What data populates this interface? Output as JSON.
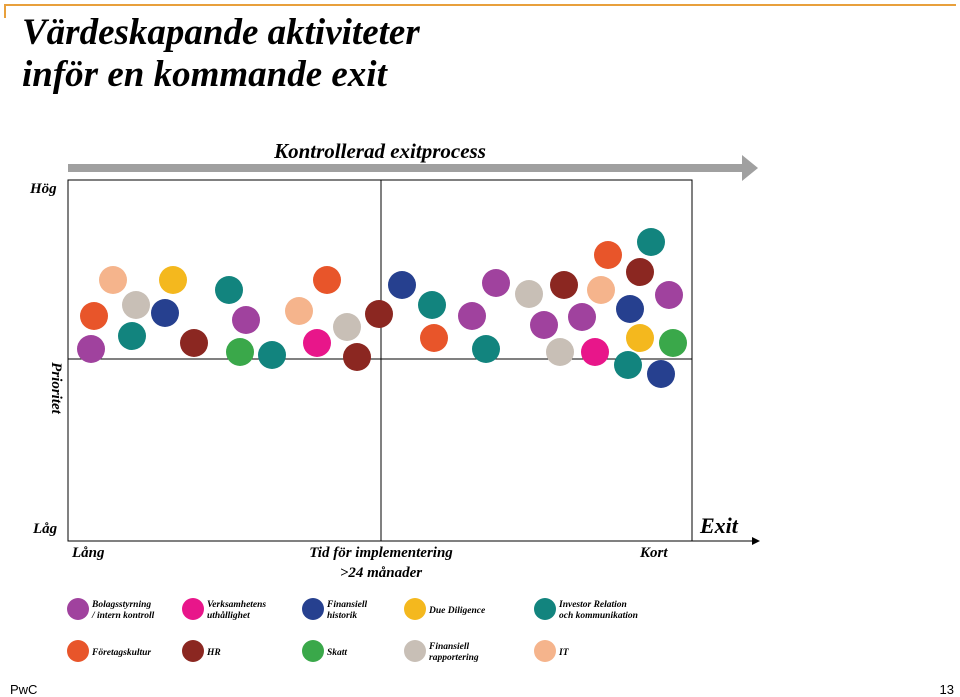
{
  "title_line1": "Värdeskapande aktiviteter",
  "title_line2": "inför en kommande exit",
  "footer": {
    "brand": "PwC",
    "page": "13"
  },
  "diagram": {
    "header": "Kontrollerad exitprocess",
    "y_high": "Hög",
    "y_low": "Låg",
    "y_label": "Prioritet",
    "x_left": "Lång",
    "x_center_line1": "Tid för implementering",
    "x_center_line2": ">24 månader",
    "x_right": "Kort",
    "exit_label": "Exit"
  },
  "colors": {
    "purple": "#a0429e",
    "magenta": "#e8168a",
    "navy": "#26408f",
    "yellow": "#f4b81e",
    "teal": "#12847e",
    "orange": "#e8552a",
    "darkred": "#8b2721",
    "green": "#3aa84a",
    "gray": "#c8bfb6",
    "peach": "#f5b48c",
    "arrow": "#a0a0a0"
  },
  "legend": [
    {
      "key": "purple",
      "line1": "Bolagsstyrning",
      "line2": "/ intern kontroll"
    },
    {
      "key": "magenta",
      "line1": "Verksamhetens",
      "line2": "uthållighet"
    },
    {
      "key": "navy",
      "line1": "Finansiell",
      "line2": "historik"
    },
    {
      "key": "yellow",
      "line1": "Due Diligence",
      "line2": ""
    },
    {
      "key": "teal",
      "line1": "Investor Relation",
      "line2": "och kommunikation"
    },
    {
      "key": "orange",
      "line1": "Företagskultur",
      "line2": ""
    },
    {
      "key": "darkred",
      "line1": "HR",
      "line2": ""
    },
    {
      "key": "green",
      "line1": "Skatt",
      "line2": ""
    },
    {
      "key": "gray",
      "line1": "Finansiell",
      "line2": "rapportering"
    },
    {
      "key": "peach",
      "line1": "IT",
      "line2": ""
    }
  ],
  "dots": [
    {
      "c": "purple"
    },
    {
      "c": "orange"
    },
    {
      "c": "peach"
    },
    {
      "c": "teal"
    },
    {
      "c": "gray"
    },
    {
      "c": "yellow"
    },
    {
      "c": "navy"
    },
    {
      "c": "darkred"
    },
    {
      "c": "teal"
    },
    {
      "c": "purple"
    },
    {
      "c": "green"
    },
    {
      "c": "teal"
    },
    {
      "c": "peach"
    },
    {
      "c": "orange"
    },
    {
      "c": "magenta"
    },
    {
      "c": "gray"
    },
    {
      "c": "darkred"
    },
    {
      "c": "darkred"
    },
    {
      "c": "navy"
    },
    {
      "c": "teal"
    },
    {
      "c": "orange"
    },
    {
      "c": "purple"
    },
    {
      "c": "purple"
    },
    {
      "c": "teal"
    },
    {
      "c": "gray"
    },
    {
      "c": "darkred"
    },
    {
      "c": "purple"
    },
    {
      "c": "gray"
    },
    {
      "c": "purple"
    },
    {
      "c": "peach"
    },
    {
      "c": "magenta"
    },
    {
      "c": "orange"
    },
    {
      "c": "teal"
    },
    {
      "c": "darkred"
    },
    {
      "c": "navy"
    },
    {
      "c": "purple"
    },
    {
      "c": "yellow"
    },
    {
      "c": "green"
    },
    {
      "c": "teal"
    },
    {
      "c": "navy"
    }
  ]
}
